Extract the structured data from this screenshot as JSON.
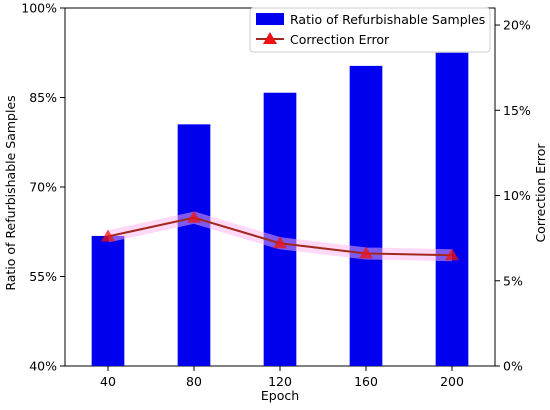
{
  "chart_data": {
    "type": "bar",
    "categories": [
      "40",
      "80",
      "120",
      "160",
      "200"
    ],
    "xlabel": "Epoch",
    "ylabel_left": "Ratio of Refurbishable Samples",
    "ylabel_right": "Correction Error",
    "left_axis": {
      "ylim": [
        40,
        100
      ],
      "ticks": [
        40,
        55,
        70,
        85,
        100
      ],
      "tick_labels": [
        "40%",
        "55%",
        "70%",
        "85%",
        "100%"
      ]
    },
    "right_axis": {
      "ylim": [
        0,
        21
      ],
      "ticks": [
        0,
        5,
        10,
        15,
        20
      ],
      "tick_labels": [
        "0%",
        "5%",
        "10%",
        "15%",
        "20%"
      ]
    },
    "series": [
      {
        "name": "Ratio of Refurbishable Samples",
        "kind": "bar",
        "axis": "left",
        "color": "#0000ee",
        "values": [
          61.8,
          80.5,
          85.8,
          90.3,
          92.5
        ]
      },
      {
        "name": "Correction Error",
        "kind": "line",
        "axis": "right",
        "color": "#a0281e",
        "marker_color": "#ee1111",
        "marker": "triangle",
        "values": [
          7.6,
          8.7,
          7.2,
          6.6,
          6.5
        ]
      }
    ],
    "legend": {
      "position": "top-right"
    },
    "grid": false
  }
}
